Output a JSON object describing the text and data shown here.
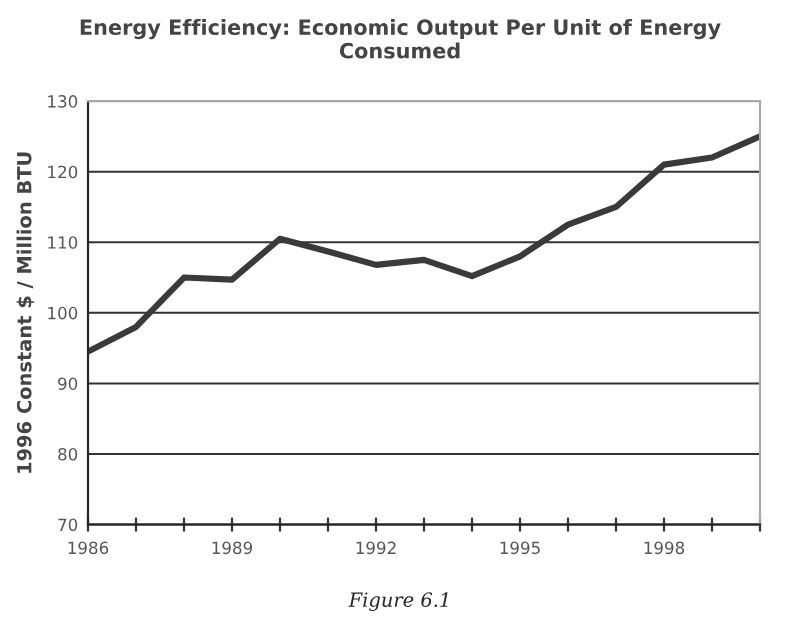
{
  "chart_data": {
    "type": "line",
    "title": "Energy Efficiency: Economic Output Per Unit of Energy\nConsumed",
    "ylabel": "1996 Constant $ / Million BTU",
    "x": [
      1986,
      1987,
      1988,
      1989,
      1990,
      1991,
      1992,
      1993,
      1994,
      1995,
      1996,
      1997,
      1998,
      1999,
      2000
    ],
    "series": [
      {
        "color": "#3a3a3a",
        "values": [
          94.5,
          98,
          105,
          104.7,
          110.5,
          108.7,
          106.8,
          107.5,
          105.2,
          108,
          112.5,
          115,
          121,
          122,
          125
        ]
      }
    ],
    "xlim": [
      1986,
      2000
    ],
    "xticks": [
      1986,
      {
        "value": 1987,
        "label": null
      },
      {
        "value": 1988,
        "label": null
      },
      1989,
      {
        "value": 1990,
        "label": null
      },
      {
        "value": 1991,
        "label": null
      },
      1992,
      {
        "value": 1993,
        "label": null
      },
      {
        "value": 1994,
        "label": null
      },
      1995,
      {
        "value": 1996,
        "label": null
      },
      {
        "value": 1997,
        "label": null
      },
      1998,
      {
        "value": 1999,
        "label": null
      },
      {
        "value": 2000,
        "label": null
      }
    ],
    "ylim": [
      70,
      130
    ],
    "yticks": [
      70,
      80,
      90,
      100,
      110,
      120,
      130
    ],
    "grid": "y",
    "marker": "none",
    "line_style": "solid",
    "legend": false,
    "annotations": [
      "Figure 6.1"
    ]
  }
}
